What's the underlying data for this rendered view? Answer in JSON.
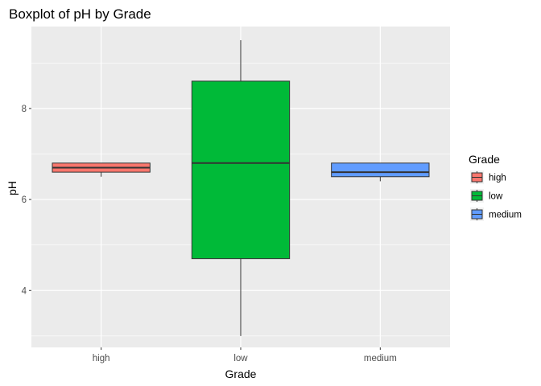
{
  "chart_data": {
    "type": "boxplot",
    "title": "Boxplot of pH by Grade",
    "xlabel": "Grade",
    "ylabel": "pH",
    "ylim": [
      2.75,
      9.8
    ],
    "yticks": [
      4,
      6,
      8
    ],
    "grid": true,
    "legend": {
      "title": "Grade",
      "placement": "right",
      "entries": [
        "high",
        "low",
        "medium"
      ]
    },
    "categories": [
      "high",
      "low",
      "medium"
    ],
    "boxes": [
      {
        "name": "high",
        "color": "#F8766D",
        "min": 6.5,
        "q1": 6.6,
        "median": 6.7,
        "q3": 6.8,
        "max": 6.8
      },
      {
        "name": "low",
        "color": "#00BA38",
        "min": 3.0,
        "q1": 4.7,
        "median": 6.8,
        "q3": 8.6,
        "max": 9.5
      },
      {
        "name": "medium",
        "color": "#619CFF",
        "min": 6.4,
        "q1": 6.5,
        "median": 6.6,
        "q3": 6.8,
        "max": 6.8
      }
    ]
  }
}
